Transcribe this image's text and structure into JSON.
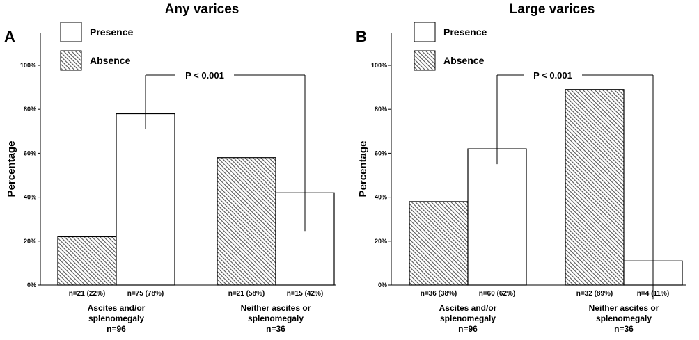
{
  "chart_data": [
    {
      "panel_label": "A",
      "type": "bar",
      "title": "Any varices",
      "ylabel": "Percentage",
      "ylim": [
        0,
        100
      ],
      "yticks": [
        "0%",
        "20%",
        "40%",
        "60%",
        "80%",
        "100%"
      ],
      "legend": [
        {
          "name": "Presence",
          "pattern": "white"
        },
        {
          "name": "Absence",
          "pattern": "hatched"
        }
      ],
      "categories": [
        {
          "lines": [
            "Ascites and/or",
            "splenomegaly",
            "n=96"
          ]
        },
        {
          "lines": [
            "Neither ascites or",
            "splenomegaly",
            "n=36"
          ]
        }
      ],
      "series": [
        {
          "name": "Absence",
          "pattern": "hatched",
          "values": [
            22,
            58
          ],
          "labels": [
            "n=21 (22%)",
            "n=21 (58%)"
          ]
        },
        {
          "name": "Presence",
          "pattern": "white",
          "values": [
            78,
            42
          ],
          "labels": [
            "n=75 (78%)",
            "n=15 (42%)"
          ]
        }
      ],
      "annotation": {
        "text": "P < 0.001"
      }
    },
    {
      "panel_label": "B",
      "type": "bar",
      "title": "Large varices",
      "ylabel": "Percentage",
      "ylim": [
        0,
        100
      ],
      "yticks": [
        "0%",
        "20%",
        "40%",
        "60%",
        "80%",
        "100%"
      ],
      "legend": [
        {
          "name": "Presence",
          "pattern": "white"
        },
        {
          "name": "Absence",
          "pattern": "hatched"
        }
      ],
      "categories": [
        {
          "lines": [
            "Ascites and/or",
            "splenomegaly",
            "n=96"
          ]
        },
        {
          "lines": [
            "Neither ascites or",
            "splenomegaly",
            "n=36"
          ]
        }
      ],
      "series": [
        {
          "name": "Absence",
          "pattern": "hatched",
          "values": [
            38,
            89
          ],
          "labels": [
            "n=36 (38%)",
            "n=32 (89%)"
          ]
        },
        {
          "name": "Presence",
          "pattern": "white",
          "values": [
            62,
            11
          ],
          "labels": [
            "n=60 (62%)",
            "n=4 (11%)"
          ]
        }
      ],
      "annotation": {
        "text": "P < 0.001"
      }
    }
  ]
}
